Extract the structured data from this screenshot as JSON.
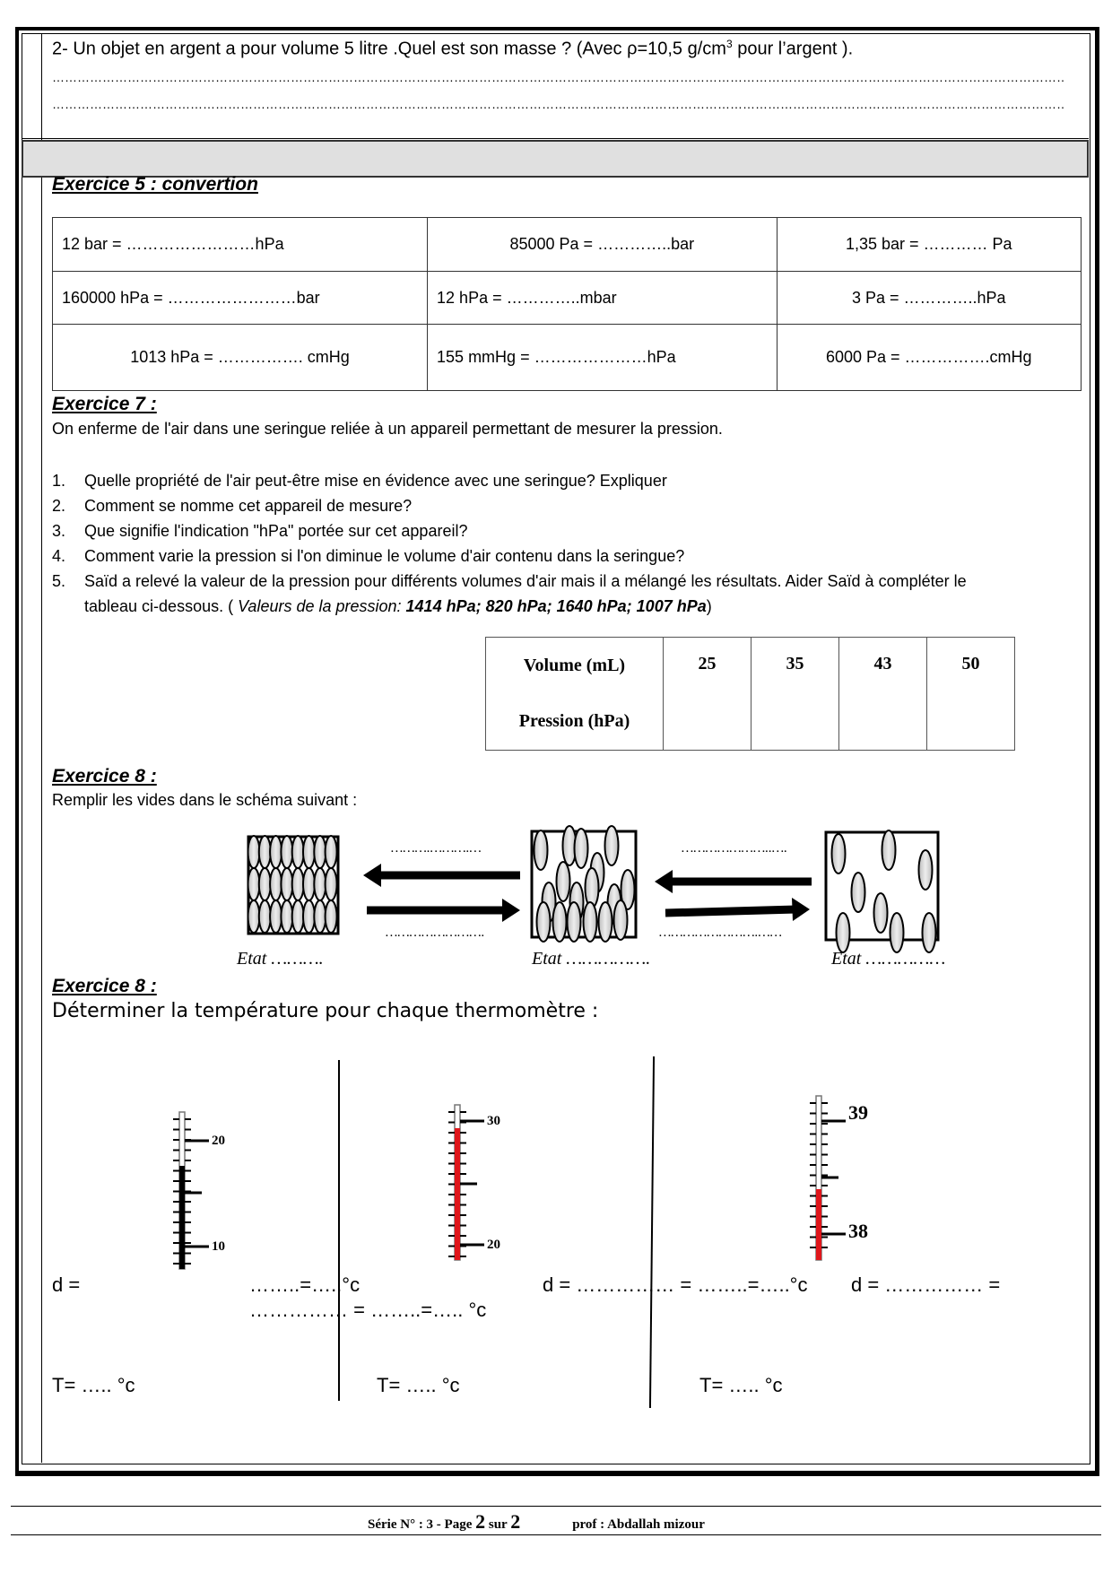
{
  "q2": {
    "text": "2-  Un objet en argent a pour volume 5 litre .Quel est son masse  ? (Avec ρ=10,5 g/cm",
    "sup": "3",
    "text_end": " pour l’argent ).",
    "dots": "……………………………………………………………………………………………………………………………………………………………………………………………………………………………………………………………"
  },
  "ex5": {
    "title": "Exercice 5 : convertion",
    "rows": [
      [
        "12 bar = ……………………hPa",
        "85000 Pa = …………..bar",
        "1,35 bar = ………… Pa"
      ],
      [
        "160000 hPa = ……………………bar",
        "12 hPa = …………..mbar",
        "3 Pa = …………..hPa"
      ],
      [
        "1013 hPa = ……………. cmHg",
        "155 mmHg = …………………hPa",
        "6000 Pa =  …………….cmHg"
      ]
    ]
  },
  "ex7": {
    "title": "Exercice 7 :",
    "intro": "On enferme de l'air dans une seringue reliée à un appareil permettant de mesurer la pression.",
    "questions": [
      {
        "n": "1.",
        "text": "Quelle propriété de l'air peut-être mise en évidence avec une seringue? Expliquer"
      },
      {
        "n": "2.",
        "text": "Comment se nomme cet appareil de mesure?"
      },
      {
        "n": "3.",
        "text": "Que signifie l'indication \"hPa\" portée sur cet appareil?"
      },
      {
        "n": "4.",
        "text": "Comment varie la pression si l'on diminue le volume d'air contenu dans la seringue?"
      },
      {
        "n": "5.",
        "text": "Saïd   a relevé la valeur de la pression pour différents volumes d'air mais il a mélangé les résultats. Aider Saïd  à compléter le tableau ci-dessous. ( ",
        "italic": "Valeurs de la pression: ",
        "bold": "1414 hPa; 820 hPa; 1640 hPa; 1007 hPa",
        "end": ")"
      }
    ],
    "table": {
      "row1": "Volume (mL)",
      "row2": "Pression (hPa)",
      "volumes": [
        "25",
        "35",
        "43",
        "50"
      ]
    }
  },
  "ex8a": {
    "title": "Exercice 8 :",
    "intro": "Remplir les vides dans le schéma suivant :",
    "top_left_dots": "……….……….…",
    "top_right_dots": "…………………..….",
    "bottom_left_dots": "…………………….",
    "bottom_right_dots": "…………………….……",
    "states": [
      "Etat ……….",
      "Etat …………….",
      "Etat ……………"
    ]
  },
  "ex8b": {
    "title": "Exercice 8 :",
    "intro": "Déterminer la température pour chaque thermomètre :",
    "thermometers": [
      {
        "labels": [
          "20",
          "10"
        ],
        "color": "#000000"
      },
      {
        "labels": [
          "30",
          "20"
        ],
        "color": "#e0161b"
      },
      {
        "labels": [
          "39",
          "38"
        ],
        "color": "#e0161b"
      }
    ],
    "d1a": "d =",
    "d1b": "……..=…..°c",
    "d1c": "…………… = ……..=….. °c",
    "d2": "d = …………… = ……..=…..°c",
    "d3": "d = …………… =",
    "t1": "T= ….. °c",
    "t2": "T= ….. °c",
    "t3": "T= ….. °c"
  },
  "footer": {
    "serie": "Série N° : 3   - Page ",
    "page": "2",
    "sur": " sur ",
    "total": "2",
    "prof": "prof : Abdallah mizour"
  }
}
